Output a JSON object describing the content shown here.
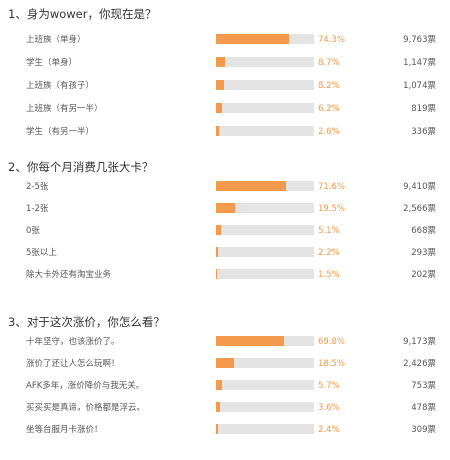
{
  "questions": [
    {
      "title": "1、身为wower，你现在是？",
      "options": [
        {
          "label": "上班族（单身）",
          "percent": "74.3%",
          "value": 74.3,
          "votes": "9,763票"
        },
        {
          "label": "学生（单身）",
          "percent": "8.7%",
          "value": 8.7,
          "votes": "1,147票"
        },
        {
          "label": "上班族（有孩子）",
          "percent": "8.2%",
          "value": 8.2,
          "votes": "1,074票"
        },
        {
          "label": "上班族（有另一半）",
          "percent": "6.2%",
          "value": 6.2,
          "votes": "819票"
        },
        {
          "label": "学生（有另一半）",
          "percent": "2.6%",
          "value": 2.6,
          "votes": "336票"
        }
      ]
    },
    {
      "title": "2、你每个月消费几张大卡？",
      "options": [
        {
          "label": "2-5张",
          "percent": "71.6%",
          "value": 71.6,
          "votes": "9,410票"
        },
        {
          "label": "1-2张",
          "percent": "19.5%",
          "value": 19.5,
          "votes": "2,566票"
        },
        {
          "label": "0张",
          "percent": "5.1%",
          "value": 5.1,
          "votes": "668票"
        },
        {
          "label": "5张以上",
          "percent": "2.2%",
          "value": 2.2,
          "votes": "293票"
        },
        {
          "label": "除大卡外还有淘宝业务",
          "percent": "1.5%",
          "value": 1.5,
          "votes": "202票"
        }
      ]
    },
    {
      "title": "3、对于这次涨价，你怎么看？",
      "options": [
        {
          "label": "十年坚守，也该涨价了。",
          "percent": "69.8%",
          "value": 69.8,
          "votes": "9,173票"
        },
        {
          "label": "涨价了还让人怎么玩啊！",
          "percent": "18.5%",
          "value": 18.5,
          "votes": "2,426票"
        },
        {
          "label": "AFK多年，涨价降价与我无关。",
          "percent": "5.7%",
          "value": 5.7,
          "votes": "753票"
        },
        {
          "label": "买买买是真谛，价格都是浮云。",
          "percent": "3.6%",
          "value": 3.6,
          "votes": "478票"
        },
        {
          "label": "坐等台服月卡涨价！",
          "percent": "2.4%",
          "value": 2.4,
          "votes": "309票"
        }
      ]
    }
  ],
  "colors": {
    "accent": "#f39a4c",
    "track": "#e4e4e4"
  }
}
